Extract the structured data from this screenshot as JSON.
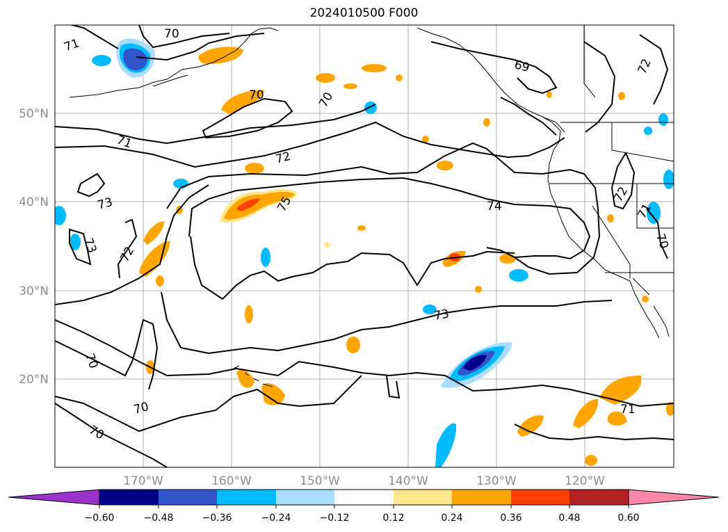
{
  "title": "2024010500 F000",
  "lat_labels": [
    "50°N",
    "40°N",
    "30°N",
    "20°N"
  ],
  "lon_labels": [
    "170°W",
    "160°W",
    "150°W",
    "140°W",
    "130°W",
    "120°W"
  ],
  "contour_labels": [
    "71",
    "70",
    "71",
    "70",
    "72",
    "73",
    "73",
    "72",
    "75",
    "74",
    "69",
    "70",
    "72",
    "72",
    "71",
    "70",
    "73",
    "70",
    "70",
    "70",
    "71"
  ],
  "colorbar": {
    "tick_labels": [
      "−0.60",
      "−0.48",
      "−0.36",
      "−0.24",
      "−0.12",
      "0.12",
      "0.24",
      "0.36",
      "0.48",
      "0.60"
    ],
    "colors": [
      "#9933cc",
      "#000088",
      "#3355cc",
      "#00bbff",
      "#aaddff",
      "#ffffff",
      "#ffe68a",
      "#ffa500",
      "#ff4000",
      "#b22222",
      "#ff88aa"
    ]
  }
}
